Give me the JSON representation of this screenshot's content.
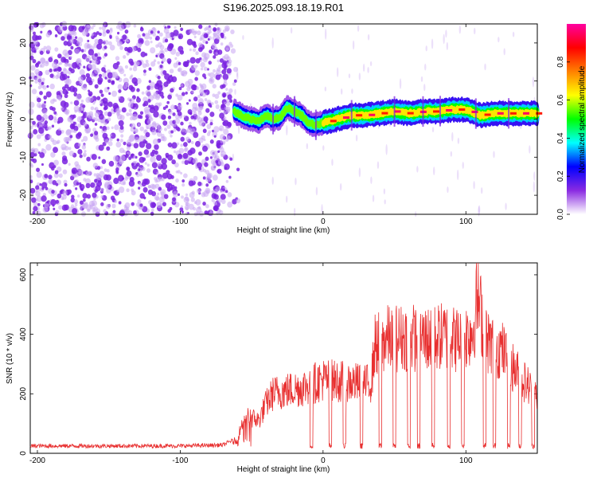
{
  "figure": {
    "title": "S196.2025.093.18.19.R01"
  },
  "chart_data": [
    {
      "type": "heatmap",
      "title": "S196.2025.093.18.19.R01",
      "xlabel": "Height of straight line (km)",
      "ylabel": "Frequency (Hz)",
      "xlim": [
        -205,
        150
      ],
      "ylim": [
        -25,
        25
      ],
      "xticks": [
        -200,
        -100,
        0,
        100
      ],
      "yticks": [
        -20,
        -10,
        0,
        10,
        20
      ],
      "colorbar": {
        "label": "Normalized spectral amplitude",
        "range": [
          0,
          1
        ],
        "ticks": [
          0.0,
          0.2,
          0.4,
          0.6,
          0.8
        ],
        "tick_labels": [
          "0.0",
          "0.2",
          "0.4",
          "0.6",
          "0.8"
        ],
        "colors": [
          "#ffffff",
          "#8a2be2",
          "#0000ff",
          "#00ffff",
          "#00ff00",
          "#ffff00",
          "#ff8000",
          "#ff0000",
          "#ff00a0"
        ]
      },
      "noise_region_x": [
        -205,
        -65
      ],
      "signal_track": {
        "x": [
          -62,
          -55,
          -50,
          -45,
          -40,
          -35,
          -30,
          -25,
          -20,
          -15,
          -10,
          -5,
          0,
          10,
          20,
          30,
          40,
          50,
          60,
          70,
          80,
          90,
          100,
          110,
          120,
          130,
          140,
          150
        ],
        "freq": [
          2,
          0.5,
          0,
          -0.5,
          1,
          0,
          0.5,
          3,
          2,
          1,
          -1,
          -1.5,
          -1,
          0,
          1,
          1,
          1.5,
          2,
          1.5,
          2,
          2,
          2.5,
          2.5,
          1,
          1.5,
          1.5,
          1.5,
          1.5
        ],
        "peak_amplitude": 0.95
      }
    },
    {
      "type": "line",
      "xlabel": "Height of straight line (km)",
      "ylabel": "SNR (10 * v/v)",
      "xlim": [
        -205,
        150
      ],
      "ylim": [
        0,
        640
      ],
      "xticks": [
        -200,
        -100,
        0,
        100
      ],
      "yticks": [
        0,
        200,
        400,
        600
      ],
      "series": [
        {
          "color": "#e83030",
          "envelope": {
            "x": [
              -205,
              -100,
              -70,
              -60,
              -55,
              -45,
              -40,
              -35,
              -25,
              -15,
              -5,
              0,
              10,
              20,
              30,
              34,
              36,
              45,
              60,
              75,
              85,
              95,
              105,
              108,
              115,
              125,
              135,
              145,
              150
            ],
            "y": [
              22,
              22,
              25,
              50,
              140,
              120,
              180,
              220,
              230,
              240,
              260,
              270,
              265,
              260,
              250,
              265,
              395,
              420,
              425,
              420,
              430,
              415,
              450,
              570,
              410,
              380,
              300,
              240,
              200
            ]
          },
          "dropouts_x": [
            -8,
            5,
            15,
            27,
            40,
            50,
            60,
            67,
            77,
            88,
            98,
            113,
            120,
            130,
            138,
            147
          ],
          "dropout_floor": 15
        }
      ]
    }
  ]
}
